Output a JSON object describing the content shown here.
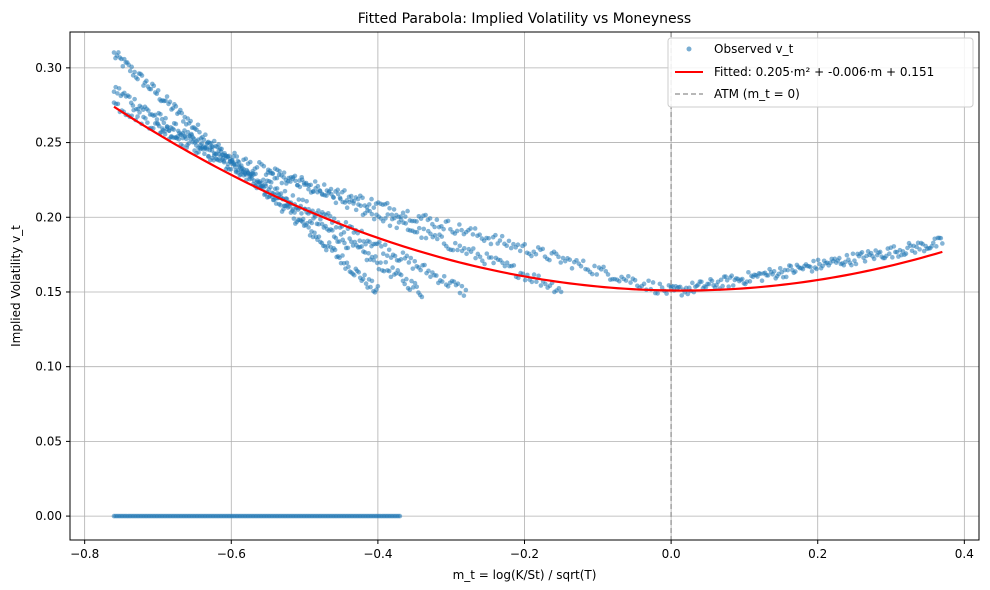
{
  "chart_data": {
    "type": "scatter",
    "title": "Fitted Parabola: Implied Volatility vs Moneyness",
    "xlabel": "m_t = log(K/St) / sqrt(T)",
    "ylabel": "Implied Volatility v_t",
    "xlim": [
      -0.82,
      0.42
    ],
    "ylim": [
      -0.016,
      0.324
    ],
    "xticks": [
      -0.8,
      -0.6,
      -0.4,
      -0.2,
      0.0,
      0.2,
      0.4
    ],
    "xtick_labels": [
      "−0.8",
      "−0.6",
      "−0.4",
      "−0.2",
      "0.0",
      "0.2",
      "0.4"
    ],
    "yticks": [
      0.0,
      0.05,
      0.1,
      0.15,
      0.2,
      0.25,
      0.3
    ],
    "ytick_labels": [
      "0.00",
      "0.05",
      "0.10",
      "0.15",
      "0.20",
      "0.25",
      "0.30"
    ],
    "grid": true,
    "legend_position": "top-right",
    "series": [
      {
        "name": "Observed v_t",
        "kind": "scatter",
        "color": "#1f77b4",
        "bands": [
          {
            "x": [
              -0.76,
              -0.37
            ],
            "y_start": 0.0,
            "y_end": 0.0
          },
          {
            "x": [
              -0.76,
              -0.4
            ],
            "y_start": 0.309,
            "y_end": 0.15
          },
          {
            "x": [
              -0.76,
              -0.34
            ],
            "y_start": 0.286,
            "y_end": 0.15
          },
          {
            "x": [
              -0.76,
              -0.28
            ],
            "y_start": 0.276,
            "y_end": 0.15
          },
          {
            "x": [
              -0.7,
              -0.15
            ],
            "y_start": 0.26,
            "y_end": 0.152
          },
          {
            "x": [
              -0.55,
              0.0
            ],
            "y_start": 0.23,
            "y_end": 0.15
          },
          {
            "x": [
              0.0,
              0.37
            ],
            "y_start": 0.15,
            "y_end": 0.183
          }
        ]
      },
      {
        "name": "Fitted: 0.205·m² + -0.006·m + 0.151",
        "kind": "line",
        "color": "#ff0000",
        "coefficients": {
          "a": 0.205,
          "b": -0.006,
          "c": 0.151
        },
        "x_range": [
          -0.76,
          0.37
        ]
      },
      {
        "name": "ATM (m_t = 0)",
        "kind": "vline",
        "color": "#a0a0a0",
        "x": 0.0
      }
    ]
  }
}
